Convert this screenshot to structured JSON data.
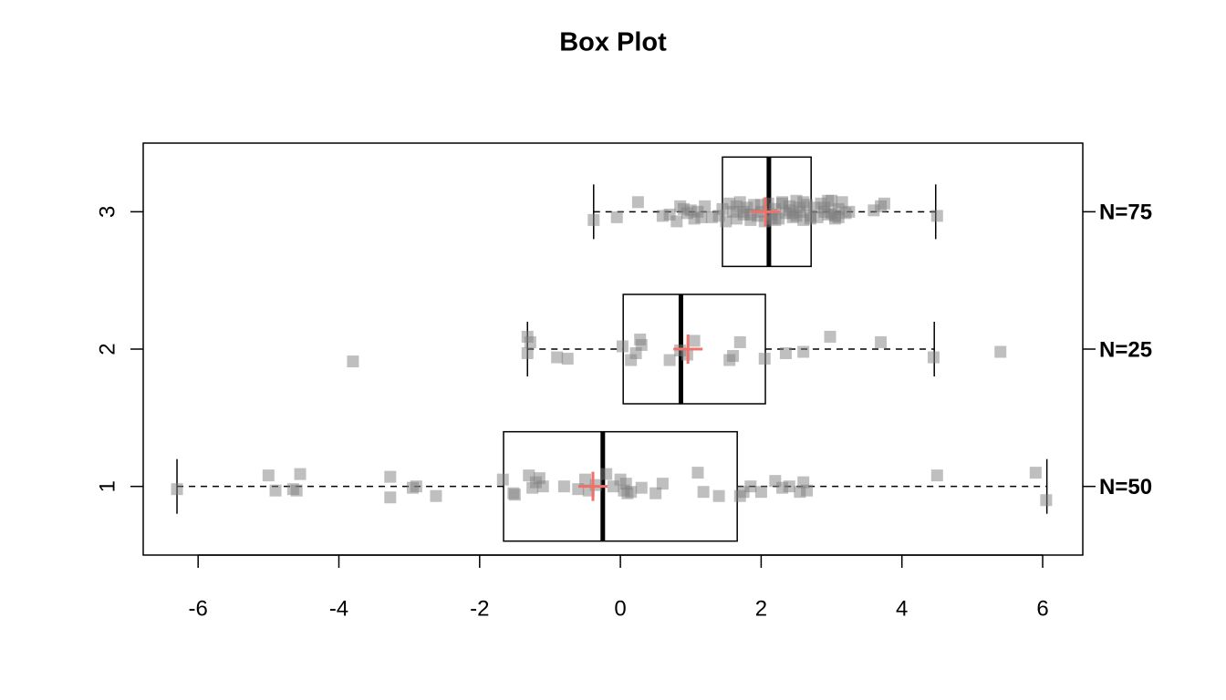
{
  "chart_data": {
    "type": "boxplot",
    "orientation": "horizontal",
    "title": "Box Plot",
    "xlim": [
      -6.78,
      6.57
    ],
    "xticks": [
      -6,
      -4,
      -2,
      0,
      2,
      4,
      6
    ],
    "ylim": [
      0.5,
      3.5
    ],
    "point_color": "rgba(128,128,128,0.5)",
    "mean_color": "#f0706a",
    "box_color": "#000000",
    "groups": [
      {
        "name": "1",
        "n_label": "N=50",
        "whisker_low": -6.3,
        "q1": -1.66,
        "median": -0.25,
        "q3": 1.66,
        "whisker_high": 6.06,
        "mean": -0.39,
        "points": {
          "x": [
            -6.3,
            -5.0,
            -4.9,
            -4.65,
            -4.6,
            -4.55,
            -3.27,
            -3.27,
            -2.95,
            -2.9,
            -2.62,
            -1.67,
            -1.52,
            -1.5,
            -1.3,
            -1.25,
            -1.15,
            -1.1,
            -0.6,
            -0.5,
            -0.45,
            -0.2,
            -0.1,
            0.0,
            0.05,
            0.1,
            0.15,
            0.5,
            0.6,
            1.1,
            1.18,
            1.4,
            1.7,
            1.85,
            2.0,
            2.2,
            2.3,
            2.55,
            2.6,
            2.65,
            4.5,
            5.9,
            6.05,
            -0.35,
            -0.8,
            0.3,
            1.75,
            2.4,
            -1.2,
            0.08
          ],
          "y": [
            0.98,
            1.08,
            0.97,
            0.98,
            0.97,
            1.09,
            1.07,
            0.92,
            0.99,
            1.0,
            0.93,
            1.05,
            0.95,
            0.94,
            1.08,
            0.99,
            1.06,
            1.0,
            0.98,
            1.05,
            0.97,
            1.09,
            1.0,
            1.05,
            0.97,
            0.95,
            0.96,
            0.95,
            1.02,
            1.1,
            0.96,
            0.93,
            0.93,
            1.0,
            0.96,
            1.04,
            0.99,
            0.96,
            1.03,
            0.97,
            1.08,
            1.1,
            0.9,
            1.01,
            1.0,
            0.99,
            0.96,
            1.0,
            1.03,
            1.02
          ]
        }
      },
      {
        "name": "2",
        "n_label": "N=25",
        "whisker_low": -1.32,
        "q1": 0.04,
        "median": 0.86,
        "q3": 2.06,
        "whisker_high": 4.46,
        "mean": 0.96,
        "points": {
          "x": [
            -3.8,
            -1.32,
            -1.32,
            -1.28,
            -0.9,
            -0.75,
            0.03,
            0.15,
            0.28,
            0.3,
            0.22,
            0.7,
            1.05,
            0.95,
            1.55,
            1.7,
            1.6,
            2.05,
            2.35,
            2.6,
            2.98,
            3.7,
            4.45,
            5.4,
            0.85
          ],
          "y": [
            1.91,
            2.09,
            1.97,
            2.05,
            1.94,
            1.93,
            2.02,
            1.92,
            2.07,
            2.03,
            1.97,
            1.92,
            2.06,
            1.96,
            1.92,
            2.05,
            1.95,
            1.93,
            1.97,
            1.98,
            2.09,
            2.05,
            1.94,
            1.98,
            1.99
          ]
        }
      },
      {
        "name": "3",
        "n_label": "N=75",
        "whisker_low": -0.38,
        "q1": 1.45,
        "median": 2.11,
        "q3": 2.71,
        "whisker_high": 4.48,
        "mean": 2.06,
        "points": {
          "x": [
            -0.38,
            -0.05,
            0.25,
            0.6,
            0.8,
            0.9,
            0.95,
            1.0,
            1.05,
            1.1,
            1.2,
            1.4,
            1.5,
            1.55,
            1.6,
            1.65,
            1.7,
            1.75,
            1.8,
            1.85,
            1.9,
            1.95,
            2.0,
            2.05,
            2.1,
            2.15,
            2.2,
            2.25,
            2.3,
            2.35,
            2.4,
            2.45,
            2.5,
            2.55,
            2.6,
            2.65,
            2.7,
            2.75,
            2.8,
            2.85,
            2.9,
            2.95,
            3.0,
            3.05,
            3.1,
            3.15,
            3.2,
            3.25,
            3.6,
            3.7,
            3.75,
            4.5,
            1.3,
            1.45,
            1.65,
            1.85,
            2.0,
            2.2,
            2.4,
            2.5,
            2.6,
            2.7,
            2.9,
            3.0,
            3.1,
            0.7,
            0.85,
            1.15,
            1.75,
            2.3,
            2.45,
            2.55,
            2.95,
            3.05,
            2.15
          ],
          "y": [
            2.94,
            2.96,
            3.07,
            2.97,
            2.93,
            3.02,
            2.99,
            3.01,
            2.95,
            3.0,
            3.04,
            2.97,
            2.93,
            3.06,
            3.0,
            2.95,
            3.07,
            2.98,
            3.03,
            2.94,
            3.05,
            2.97,
            3.0,
            2.93,
            3.06,
            2.98,
            3.02,
            2.95,
            3.07,
            2.99,
            3.04,
            2.96,
            3.08,
            3.0,
            2.94,
            3.05,
            2.97,
            3.03,
            2.96,
            3.06,
            3.0,
            2.98,
            3.08,
            2.95,
            3.02,
            3.07,
            2.99,
            3.0,
            3.01,
            3.04,
            3.06,
            2.97,
            2.96,
            3.02,
            3.04,
            2.98,
            3.05,
            2.94,
            3.01,
            2.97,
            3.07,
            2.95,
            3.03,
            2.99,
            2.96,
            2.98,
            3.04,
            2.96,
            3.0,
            3.06,
            2.99,
            3.03,
            3.08,
            2.97,
            2.95
          ]
        }
      }
    ]
  }
}
